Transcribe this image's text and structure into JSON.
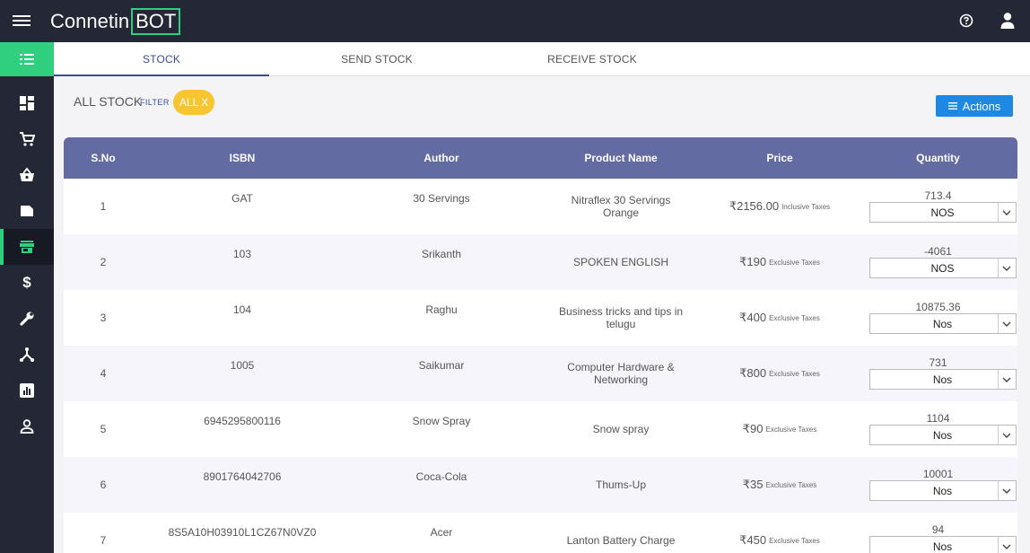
{
  "header": {
    "brand_prefix": "Connetin",
    "brand_box": "BOT",
    "help_icon": "help-circle-icon",
    "user_icon": "user-icon"
  },
  "sidebar": {
    "items": [
      {
        "name": "dashboard",
        "icon": "dashboard-icon"
      },
      {
        "name": "cart",
        "icon": "cart-icon"
      },
      {
        "name": "basket",
        "icon": "basket-icon"
      },
      {
        "name": "wallet",
        "icon": "wallet-icon"
      },
      {
        "name": "store",
        "icon": "store-icon",
        "active": true
      },
      {
        "name": "dollar",
        "icon": "dollar-icon"
      },
      {
        "name": "wrench",
        "icon": "wrench-icon"
      },
      {
        "name": "network",
        "icon": "network-icon"
      },
      {
        "name": "reports",
        "icon": "bar-chart-icon"
      },
      {
        "name": "profile",
        "icon": "person-icon"
      }
    ]
  },
  "tabs": [
    "STOCK",
    "SEND STOCK",
    "RECEIVE STOCK"
  ],
  "filterbar": {
    "title": "ALL STOCK",
    "filter_label": "FILTER",
    "chip": "ALL X",
    "actions_label": "Actions"
  },
  "table": {
    "headers": [
      "S.No",
      "ISBN",
      "Author",
      "Product Name",
      "Price",
      "Quantity"
    ],
    "rows": [
      {
        "sno": "1",
        "isbn": "GAT",
        "author": "30 Servings",
        "product": "Nitraflex 30 Servings Orange",
        "price": "₹2156.00",
        "tax": "Inclusive Taxes",
        "qty": "713.4",
        "unit": "NOS"
      },
      {
        "sno": "2",
        "isbn": "103",
        "author": "Srikanth",
        "product": "SPOKEN ENGLISH",
        "price": "₹190",
        "tax": "Exclusive Taxes",
        "qty": "-4061",
        "unit": "NOS"
      },
      {
        "sno": "3",
        "isbn": "104",
        "author": "Raghu",
        "product": "Business tricks and tips in telugu",
        "price": "₹400",
        "tax": "Exclusive Taxes",
        "qty": "10875.36",
        "unit": "Nos"
      },
      {
        "sno": "4",
        "isbn": "1005",
        "author": "Saikumar",
        "product": "Computer Hardware & Networking",
        "price": "₹800",
        "tax": "Exclusive Taxes",
        "qty": "731",
        "unit": "Nos"
      },
      {
        "sno": "5",
        "isbn": "6945295800116",
        "author": "Snow Spray",
        "product": "Snow spray",
        "price": "₹90",
        "tax": "Exclusive Taxes",
        "qty": "1104",
        "unit": "Nos"
      },
      {
        "sno": "6",
        "isbn": "8901764042706",
        "author": "Coca-Cola",
        "product": "Thums-Up",
        "price": "₹35",
        "tax": "Exclusive Taxes",
        "qty": "10001",
        "unit": "Nos"
      },
      {
        "sno": "7",
        "isbn": "8S5A10H03910L1CZ67N0VZ0",
        "author": "Acer",
        "product": "Lanton Battery Charge",
        "price": "₹450",
        "tax": "Exclusive Taxes",
        "qty": "94",
        "unit": "Nos"
      }
    ]
  }
}
